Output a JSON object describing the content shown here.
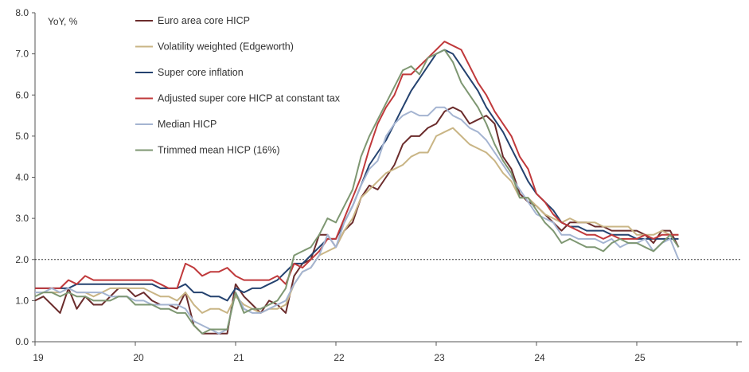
{
  "chart_data": {
    "type": "line",
    "title": "",
    "ylabel": "YoY, %",
    "xlabel": "",
    "ylim": [
      0,
      8
    ],
    "xlim": [
      2019.0,
      2026.0
    ],
    "y_ticks": [
      "0.0",
      "1.0",
      "2.0",
      "3.0",
      "4.0",
      "5.0",
      "6.0",
      "7.0",
      "8.0"
    ],
    "x_ticks": [
      "19",
      "20",
      "21",
      "22",
      "23",
      "24",
      "25"
    ],
    "reference_line": {
      "y": 2.0,
      "style": "dotted"
    },
    "grid": false,
    "legend_position": "top-left",
    "series": [
      {
        "name": "Euro area core HICP",
        "color": "#6b2c2c",
        "x": [
          2019.0,
          2019.083,
          2019.167,
          2019.25,
          2019.333,
          2019.417,
          2019.5,
          2019.583,
          2019.667,
          2019.75,
          2019.833,
          2019.917,
          2020.0,
          2020.083,
          2020.167,
          2020.25,
          2020.333,
          2020.417,
          2020.5,
          2020.583,
          2020.667,
          2020.75,
          2020.833,
          2020.917,
          2021.0,
          2021.083,
          2021.167,
          2021.25,
          2021.333,
          2021.417,
          2021.5,
          2021.583,
          2021.667,
          2021.75,
          2021.833,
          2021.917,
          2022.0,
          2022.083,
          2022.167,
          2022.25,
          2022.333,
          2022.417,
          2022.5,
          2022.583,
          2022.667,
          2022.75,
          2022.833,
          2022.917,
          2023.0,
          2023.083,
          2023.167,
          2023.25,
          2023.333,
          2023.417,
          2023.5,
          2023.583,
          2023.667,
          2023.75,
          2023.833,
          2023.917,
          2024.0,
          2024.083,
          2024.167,
          2024.25,
          2024.333,
          2024.417,
          2024.5,
          2024.583,
          2024.667,
          2024.75,
          2024.833,
          2024.917,
          2025.0,
          2025.083,
          2025.167,
          2025.25,
          2025.333,
          2025.417
        ],
        "values": [
          1.0,
          1.1,
          0.9,
          0.7,
          1.3,
          0.8,
          1.1,
          0.9,
          0.9,
          1.1,
          1.3,
          1.3,
          1.1,
          1.2,
          1.0,
          0.9,
          0.9,
          0.8,
          1.2,
          0.4,
          0.2,
          0.2,
          0.2,
          0.2,
          1.4,
          1.1,
          0.9,
          0.7,
          1.0,
          0.9,
          0.7,
          1.6,
          1.9,
          2.0,
          2.6,
          2.6,
          2.3,
          2.7,
          2.9,
          3.5,
          3.8,
          3.7,
          4.0,
          4.3,
          4.8,
          5.0,
          5.0,
          5.2,
          5.3,
          5.6,
          5.7,
          5.6,
          5.3,
          5.4,
          5.5,
          5.3,
          4.5,
          4.2,
          3.6,
          3.4,
          3.3,
          3.1,
          2.9,
          2.7,
          2.9,
          2.9,
          2.9,
          2.8,
          2.8,
          2.7,
          2.7,
          2.7,
          2.7,
          2.6,
          2.4,
          2.7,
          2.7,
          2.3
        ]
      },
      {
        "name": "Volatility weighted (Edgeworth)",
        "color": "#c9b585",
        "x": [
          2019.0,
          2019.083,
          2019.167,
          2019.25,
          2019.333,
          2019.417,
          2019.5,
          2019.583,
          2019.667,
          2019.75,
          2019.833,
          2019.917,
          2020.0,
          2020.083,
          2020.167,
          2020.25,
          2020.333,
          2020.417,
          2020.5,
          2020.583,
          2020.667,
          2020.75,
          2020.833,
          2020.917,
          2021.0,
          2021.083,
          2021.167,
          2021.25,
          2021.333,
          2021.417,
          2021.5,
          2021.583,
          2021.667,
          2021.75,
          2021.833,
          2021.917,
          2022.0,
          2022.083,
          2022.167,
          2022.25,
          2022.333,
          2022.417,
          2022.5,
          2022.583,
          2022.667,
          2022.75,
          2022.833,
          2022.917,
          2023.0,
          2023.083,
          2023.167,
          2023.25,
          2023.333,
          2023.417,
          2023.5,
          2023.583,
          2023.667,
          2023.75,
          2023.833,
          2023.917,
          2024.0,
          2024.083,
          2024.167,
          2024.25,
          2024.333,
          2024.417,
          2024.5,
          2024.583,
          2024.667,
          2024.75,
          2024.833,
          2024.917,
          2025.0,
          2025.083,
          2025.167,
          2025.25,
          2025.333,
          2025.417
        ],
        "values": [
          1.2,
          1.2,
          1.2,
          1.2,
          1.3,
          1.2,
          1.2,
          1.1,
          1.2,
          1.3,
          1.3,
          1.3,
          1.3,
          1.3,
          1.2,
          1.1,
          1.1,
          1.0,
          1.2,
          0.9,
          0.7,
          0.8,
          0.8,
          0.7,
          1.1,
          0.9,
          0.8,
          0.7,
          0.8,
          0.8,
          0.9,
          1.4,
          1.7,
          1.8,
          2.1,
          2.2,
          2.3,
          2.7,
          3.0,
          3.5,
          3.7,
          3.9,
          4.1,
          4.2,
          4.3,
          4.5,
          4.6,
          4.6,
          5.0,
          5.1,
          5.2,
          5.0,
          4.8,
          4.7,
          4.6,
          4.4,
          4.1,
          3.9,
          3.5,
          3.5,
          3.3,
          3.1,
          3.0,
          2.9,
          3.0,
          2.9,
          2.9,
          2.9,
          2.8,
          2.8,
          2.8,
          2.8,
          2.6,
          2.6,
          2.6,
          2.7,
          2.6,
          2.6
        ]
      },
      {
        "name": "Super core inflation",
        "color": "#24426f",
        "x": [
          2019.0,
          2019.083,
          2019.167,
          2019.25,
          2019.333,
          2019.417,
          2019.5,
          2019.583,
          2019.667,
          2019.75,
          2019.833,
          2019.917,
          2020.0,
          2020.083,
          2020.167,
          2020.25,
          2020.333,
          2020.417,
          2020.5,
          2020.583,
          2020.667,
          2020.75,
          2020.833,
          2020.917,
          2021.0,
          2021.083,
          2021.167,
          2021.25,
          2021.333,
          2021.417,
          2021.5,
          2021.583,
          2021.667,
          2021.75,
          2021.833,
          2021.917,
          2022.0,
          2022.083,
          2022.167,
          2022.25,
          2022.333,
          2022.417,
          2022.5,
          2022.583,
          2022.667,
          2022.75,
          2022.833,
          2022.917,
          2023.0,
          2023.083,
          2023.167,
          2023.25,
          2023.333,
          2023.417,
          2023.5,
          2023.583,
          2023.667,
          2023.75,
          2023.833,
          2023.917,
          2024.0,
          2024.083,
          2024.167,
          2024.25,
          2024.333,
          2024.417,
          2024.5,
          2024.583,
          2024.667,
          2024.75,
          2024.833,
          2024.917,
          2025.0,
          2025.083,
          2025.167,
          2025.25,
          2025.333,
          2025.417
        ],
        "values": [
          1.3,
          1.3,
          1.3,
          1.3,
          1.3,
          1.4,
          1.4,
          1.4,
          1.4,
          1.4,
          1.4,
          1.4,
          1.4,
          1.4,
          1.4,
          1.3,
          1.3,
          1.3,
          1.4,
          1.2,
          1.2,
          1.1,
          1.1,
          1.0,
          1.3,
          1.2,
          1.3,
          1.3,
          1.4,
          1.5,
          1.7,
          1.9,
          1.9,
          2.1,
          2.3,
          2.5,
          2.5,
          2.9,
          3.3,
          3.8,
          4.3,
          4.6,
          4.9,
          5.3,
          5.7,
          6.1,
          6.4,
          6.7,
          7.0,
          7.1,
          7.0,
          6.7,
          6.4,
          6.1,
          5.7,
          5.4,
          5.1,
          4.7,
          4.3,
          3.9,
          3.6,
          3.4,
          3.2,
          2.9,
          2.8,
          2.8,
          2.7,
          2.7,
          2.7,
          2.6,
          2.6,
          2.6,
          2.5,
          2.5,
          2.5,
          2.5,
          2.5,
          2.5
        ]
      },
      {
        "name": "Adjusted super core HICP at constant tax",
        "color": "#c0393b",
        "x": [
          2019.0,
          2019.083,
          2019.167,
          2019.25,
          2019.333,
          2019.417,
          2019.5,
          2019.583,
          2019.667,
          2019.75,
          2019.833,
          2019.917,
          2020.0,
          2020.083,
          2020.167,
          2020.25,
          2020.333,
          2020.417,
          2020.5,
          2020.583,
          2020.667,
          2020.75,
          2020.833,
          2020.917,
          2021.0,
          2021.083,
          2021.167,
          2021.25,
          2021.333,
          2021.417,
          2021.5,
          2021.583,
          2021.667,
          2021.75,
          2021.833,
          2021.917,
          2022.0,
          2022.083,
          2022.167,
          2022.25,
          2022.333,
          2022.417,
          2022.5,
          2022.583,
          2022.667,
          2022.75,
          2022.833,
          2022.917,
          2023.0,
          2023.083,
          2023.167,
          2023.25,
          2023.333,
          2023.417,
          2023.5,
          2023.583,
          2023.667,
          2023.75,
          2023.833,
          2023.917,
          2024.0,
          2024.083,
          2024.167,
          2024.25,
          2024.333,
          2024.417,
          2024.5,
          2024.583,
          2024.667,
          2024.75,
          2024.833,
          2024.917,
          2025.0,
          2025.083,
          2025.167,
          2025.25,
          2025.333,
          2025.417
        ],
        "values": [
          1.3,
          1.3,
          1.3,
          1.3,
          1.5,
          1.4,
          1.6,
          1.5,
          1.5,
          1.5,
          1.5,
          1.5,
          1.5,
          1.5,
          1.5,
          1.4,
          1.3,
          1.3,
          1.9,
          1.8,
          1.6,
          1.7,
          1.7,
          1.8,
          1.6,
          1.5,
          1.5,
          1.5,
          1.5,
          1.6,
          1.4,
          1.9,
          1.8,
          2.0,
          2.2,
          2.5,
          2.5,
          3.0,
          3.5,
          4.0,
          4.7,
          5.3,
          5.7,
          6.0,
          6.5,
          6.5,
          6.7,
          6.9,
          7.1,
          7.3,
          7.2,
          7.1,
          6.7,
          6.3,
          6.0,
          5.6,
          5.3,
          5.0,
          4.5,
          4.2,
          3.6,
          3.4,
          3.1,
          2.9,
          2.8,
          2.7,
          2.6,
          2.6,
          2.5,
          2.6,
          2.5,
          2.5,
          2.5,
          2.6,
          2.5,
          2.6,
          2.6,
          2.6
        ]
      },
      {
        "name": "Median HICP",
        "color": "#a4b4d1",
        "x": [
          2019.0,
          2019.083,
          2019.167,
          2019.25,
          2019.333,
          2019.417,
          2019.5,
          2019.583,
          2019.667,
          2019.75,
          2019.833,
          2019.917,
          2020.0,
          2020.083,
          2020.167,
          2020.25,
          2020.333,
          2020.417,
          2020.5,
          2020.583,
          2020.667,
          2020.75,
          2020.833,
          2020.917,
          2021.0,
          2021.083,
          2021.167,
          2021.25,
          2021.333,
          2021.417,
          2021.5,
          2021.583,
          2021.667,
          2021.75,
          2021.833,
          2021.917,
          2022.0,
          2022.083,
          2022.167,
          2022.25,
          2022.333,
          2022.417,
          2022.5,
          2022.583,
          2022.667,
          2022.75,
          2022.833,
          2022.917,
          2023.0,
          2023.083,
          2023.167,
          2023.25,
          2023.333,
          2023.417,
          2023.5,
          2023.583,
          2023.667,
          2023.75,
          2023.833,
          2023.917,
          2024.0,
          2024.083,
          2024.167,
          2024.25,
          2024.333,
          2024.417,
          2024.5,
          2024.583,
          2024.667,
          2024.75,
          2024.833,
          2024.917,
          2025.0,
          2025.083,
          2025.167,
          2025.25,
          2025.333,
          2025.417
        ],
        "values": [
          1.2,
          1.2,
          1.3,
          1.2,
          1.3,
          1.2,
          1.2,
          1.2,
          1.2,
          1.1,
          1.1,
          1.1,
          1.0,
          1.0,
          0.9,
          0.9,
          0.9,
          0.9,
          0.8,
          0.5,
          0.4,
          0.3,
          0.2,
          0.3,
          1.2,
          0.8,
          0.7,
          0.7,
          0.8,
          0.9,
          1.0,
          1.4,
          1.7,
          1.8,
          2.1,
          2.6,
          2.3,
          2.9,
          3.3,
          3.8,
          4.2,
          4.4,
          5.0,
          5.3,
          5.5,
          5.6,
          5.5,
          5.5,
          5.7,
          5.7,
          5.5,
          5.4,
          5.2,
          5.1,
          4.9,
          4.6,
          4.3,
          4.0,
          3.7,
          3.4,
          3.1,
          3.0,
          2.9,
          2.6,
          2.6,
          2.5,
          2.5,
          2.5,
          2.4,
          2.5,
          2.3,
          2.4,
          2.4,
          2.5,
          2.2,
          2.4,
          2.5,
          2.0
        ]
      },
      {
        "name": "Trimmed mean HICP (16%)",
        "color": "#7e9772",
        "x": [
          2019.0,
          2019.083,
          2019.167,
          2019.25,
          2019.333,
          2019.417,
          2019.5,
          2019.583,
          2019.667,
          2019.75,
          2019.833,
          2019.917,
          2020.0,
          2020.083,
          2020.167,
          2020.25,
          2020.333,
          2020.417,
          2020.5,
          2020.583,
          2020.667,
          2020.75,
          2020.833,
          2020.917,
          2021.0,
          2021.083,
          2021.167,
          2021.25,
          2021.333,
          2021.417,
          2021.5,
          2021.583,
          2021.667,
          2021.75,
          2021.833,
          2021.917,
          2022.0,
          2022.083,
          2022.167,
          2022.25,
          2022.333,
          2022.417,
          2022.5,
          2022.583,
          2022.667,
          2022.75,
          2022.833,
          2022.917,
          2023.0,
          2023.083,
          2023.167,
          2023.25,
          2023.333,
          2023.417,
          2023.5,
          2023.583,
          2023.667,
          2023.75,
          2023.833,
          2023.917,
          2024.0,
          2024.083,
          2024.167,
          2024.25,
          2024.333,
          2024.417,
          2024.5,
          2024.583,
          2024.667,
          2024.75,
          2024.833,
          2024.917,
          2025.0,
          2025.083,
          2025.167,
          2025.25,
          2025.333,
          2025.417
        ],
        "values": [
          1.1,
          1.2,
          1.2,
          1.1,
          1.2,
          1.1,
          1.1,
          1.0,
          1.0,
          1.0,
          1.1,
          1.1,
          0.9,
          0.9,
          0.9,
          0.8,
          0.8,
          0.7,
          0.7,
          0.4,
          0.2,
          0.3,
          0.3,
          0.3,
          1.2,
          0.7,
          0.8,
          0.8,
          0.9,
          1.0,
          1.3,
          2.1,
          2.2,
          2.3,
          2.6,
          3.0,
          2.9,
          3.3,
          3.7,
          4.5,
          5.0,
          5.4,
          5.8,
          6.2,
          6.6,
          6.7,
          6.5,
          6.9,
          7.0,
          7.1,
          6.8,
          6.3,
          6.0,
          5.7,
          5.3,
          4.8,
          4.4,
          4.1,
          3.5,
          3.5,
          3.2,
          2.9,
          2.7,
          2.4,
          2.5,
          2.4,
          2.3,
          2.3,
          2.2,
          2.4,
          2.5,
          2.4,
          2.4,
          2.3,
          2.2,
          2.4,
          2.6,
          2.3
        ]
      }
    ]
  }
}
